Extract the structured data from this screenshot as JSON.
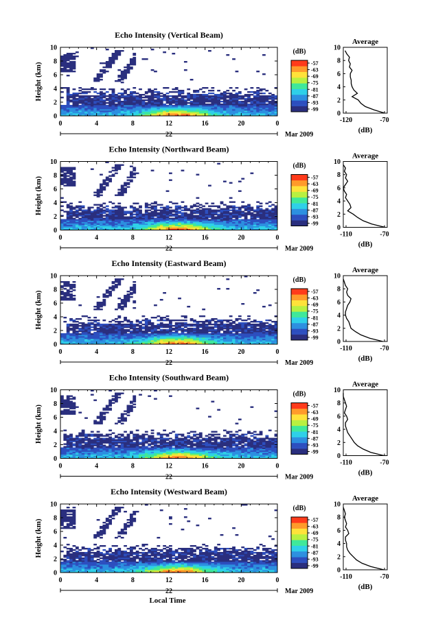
{
  "figure": {
    "xlabel": "Local Time",
    "date_label": "Mar 2009",
    "day_label": "22",
    "colorbar_unit": "(dB)",
    "profile_title": "Average",
    "profile_xlabel": "(dB)"
  },
  "colors": {
    "scale": [
      "#2a2f7e",
      "#2d4fbf",
      "#2c8fe0",
      "#2fd0e8",
      "#3fe89a",
      "#b8f040",
      "#ffe23a",
      "#ff9a2a",
      "#ff3a1a"
    ]
  },
  "chart_data": [
    {
      "type": "heatmap",
      "title": "Echo Intensity (Vertical Beam)",
      "xlabel": "",
      "ylabel": "Height (km)",
      "xlim": [
        0,
        24
      ],
      "ylim": [
        0,
        10
      ],
      "xticks": [
        "0",
        "4",
        "8",
        "12",
        "16",
        "20",
        "0"
      ],
      "yticks": [
        "0",
        "2",
        "4",
        "6",
        "8",
        "10"
      ],
      "colorbar_ticks": [
        "-57",
        "-63",
        "-69",
        "-75",
        "-81",
        "-87",
        "-93",
        "-99"
      ],
      "profile": {
        "xlim": [
          -120,
          -70
        ],
        "xticks": [
          "-120",
          "-70"
        ],
        "heights": [
          0,
          0.5,
          1,
          1.5,
          2,
          2.5,
          3,
          3.5,
          4,
          4.5,
          5,
          5.5,
          6,
          6.5,
          7,
          7.5,
          8,
          8.5,
          9,
          9.5
        ],
        "values": [
          -73,
          -85,
          -95,
          -100,
          -103,
          -110,
          -104,
          -108,
          -110,
          -111,
          -111,
          -112,
          -112,
          -110,
          -113,
          -112,
          -114,
          -113,
          -116,
          -118
        ]
      }
    },
    {
      "type": "heatmap",
      "title": "Echo Intensity (Northward Beam)",
      "xlabel": "",
      "ylabel": "Height (km)",
      "xlim": [
        0,
        24
      ],
      "ylim": [
        0,
        10
      ],
      "xticks": [
        "0",
        "4",
        "8",
        "12",
        "16",
        "20",
        "0"
      ],
      "yticks": [
        "0",
        "2",
        "4",
        "6",
        "8",
        "10"
      ],
      "colorbar_ticks": [
        "-57",
        "-63",
        "-69",
        "-75",
        "-81",
        "-87",
        "-93",
        "-99"
      ],
      "profile": {
        "xlim": [
          -110,
          -70
        ],
        "xticks": [
          "-110",
          "-70"
        ],
        "heights": [
          0,
          0.5,
          1,
          1.5,
          2,
          2.5,
          3,
          3.5,
          4,
          4.5,
          5,
          5.5,
          6,
          6.5,
          7,
          7.5,
          8,
          8.5,
          9,
          9.5
        ],
        "values": [
          -72,
          -84,
          -92,
          -97,
          -101,
          -106,
          -103,
          -104,
          -106,
          -108,
          -107,
          -109,
          -110,
          -108,
          -106,
          -108,
          -107,
          -109,
          -108,
          -110
        ]
      }
    },
    {
      "type": "heatmap",
      "title": "Echo Intensity (Eastward Beam)",
      "xlabel": "",
      "ylabel": "Height (km)",
      "xlim": [
        0,
        24
      ],
      "ylim": [
        0,
        10
      ],
      "xticks": [
        "0",
        "4",
        "8",
        "12",
        "16",
        "20",
        "0"
      ],
      "yticks": [
        "0",
        "2",
        "4",
        "6",
        "8",
        "10"
      ],
      "colorbar_ticks": [
        "-57",
        "-63",
        "-69",
        "-75",
        "-81",
        "-87",
        "-93",
        "-99"
      ],
      "profile": {
        "xlim": [
          -110,
          -70
        ],
        "xticks": [
          "-110",
          "-70"
        ],
        "heights": [
          0,
          0.5,
          1,
          1.5,
          2,
          2.5,
          3,
          3.5,
          4,
          4.5,
          5,
          5.5,
          6,
          6.5,
          7,
          7.5,
          8,
          8.5,
          9,
          9.5
        ],
        "values": [
          -74,
          -86,
          -94,
          -99,
          -103,
          -104,
          -105,
          -107,
          -108,
          -108,
          -107,
          -106,
          -104,
          -103,
          -106,
          -107,
          -106,
          -108,
          -109,
          -110
        ]
      }
    },
    {
      "type": "heatmap",
      "title": "Echo Intensity (Southward Beam)",
      "xlabel": "",
      "ylabel": "Height (km)",
      "xlim": [
        0,
        24
      ],
      "ylim": [
        0,
        10
      ],
      "xticks": [
        "0",
        "4",
        "8",
        "12",
        "16",
        "20",
        "0"
      ],
      "yticks": [
        "0",
        "2",
        "4",
        "6",
        "8",
        "10"
      ],
      "colorbar_ticks": [
        "-57",
        "-63",
        "-69",
        "-75",
        "-81",
        "-87",
        "-93",
        "-99"
      ],
      "profile": {
        "xlim": [
          -110,
          -70
        ],
        "xticks": [
          "-110",
          "-70"
        ],
        "heights": [
          0,
          0.5,
          1,
          1.5,
          2,
          2.5,
          3,
          3.5,
          4,
          4.5,
          5,
          5.5,
          6,
          6.5,
          7,
          7.5,
          8,
          8.5,
          9,
          9.5
        ],
        "values": [
          -73,
          -85,
          -92,
          -97,
          -100,
          -102,
          -104,
          -106,
          -107,
          -108,
          -108,
          -106,
          -107,
          -109,
          -108,
          -107,
          -108,
          -109,
          -110,
          -110
        ]
      }
    },
    {
      "type": "heatmap",
      "title": "Echo Intensity (Westward Beam)",
      "xlabel": "",
      "ylabel": "Height (km)",
      "xlim": [
        0,
        24
      ],
      "ylim": [
        0,
        10
      ],
      "xticks": [
        "0",
        "4",
        "8",
        "12",
        "16",
        "20",
        "0"
      ],
      "yticks": [
        "0",
        "2",
        "4",
        "6",
        "8",
        "10"
      ],
      "colorbar_ticks": [
        "-57",
        "-63",
        "-69",
        "-75",
        "-81",
        "-87",
        "-93",
        "-99"
      ],
      "profile": {
        "xlim": [
          -110,
          -70
        ],
        "xticks": [
          "-110",
          "-70"
        ],
        "heights": [
          0,
          0.5,
          1,
          1.5,
          2,
          2.5,
          3,
          3.5,
          4,
          4.5,
          5,
          5.5,
          6,
          6.5,
          7,
          7.5,
          8,
          8.5,
          9,
          9.5
        ],
        "values": [
          -73,
          -85,
          -93,
          -98,
          -101,
          -104,
          -106,
          -107,
          -107,
          -108,
          -108,
          -105,
          -106,
          -108,
          -107,
          -108,
          -109,
          -108,
          -109,
          -110
        ]
      }
    }
  ]
}
